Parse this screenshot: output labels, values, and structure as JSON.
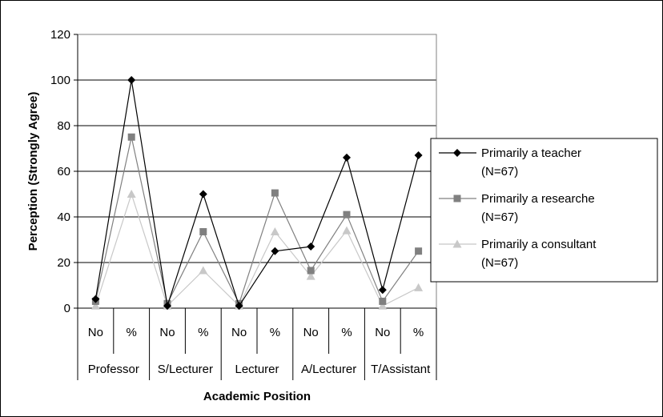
{
  "chart_data": {
    "type": "line",
    "xlabel": "Academic Position",
    "ylabel": "Perception (Strongly Agree)",
    "ylim": [
      0,
      120
    ],
    "yticks": [
      0,
      20,
      40,
      60,
      80,
      100,
      120
    ],
    "grid": true,
    "legend_position": "right",
    "groups": [
      "Professor",
      "S/Lecturer",
      "Lecturer",
      "A/Lecturer",
      "T/Assistant"
    ],
    "categories": [
      "No",
      "%",
      "No",
      "%",
      "No",
      "%",
      "No",
      "%",
      "No",
      "%"
    ],
    "series": [
      {
        "name": "Primarily a teacher",
        "name_sub": "(N=67)",
        "color": "#000000",
        "marker": "diamond",
        "values": [
          4,
          100,
          1,
          50,
          1,
          25,
          27,
          66,
          8,
          67
        ]
      },
      {
        "name": "Primarily a researche",
        "name_sub": "(N=67)",
        "color": "#808080",
        "marker": "square",
        "values": [
          3,
          75,
          2,
          33.5,
          2,
          50.5,
          16.5,
          41,
          3,
          25
        ]
      },
      {
        "name": "Primarily a consultant",
        "name_sub": "(N=67)",
        "color": "#C8C8C8",
        "marker": "triangle",
        "values": [
          1,
          50,
          1,
          16.5,
          1,
          33.5,
          14,
          34,
          1,
          9
        ]
      }
    ]
  }
}
